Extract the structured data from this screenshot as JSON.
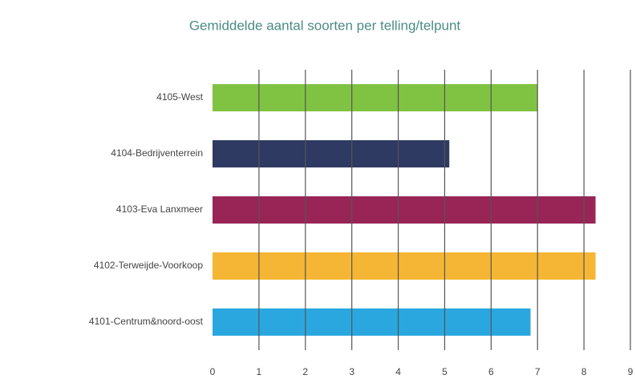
{
  "chart_data": {
    "type": "barh",
    "title": "Gemiddelde aantal soorten per telling/telpunt",
    "categories": [
      "4105-West",
      "4104-Bedrijventerrein",
      "4103-Eva Lanxmeer",
      "4102-Terweijde-Voorkoop",
      "4101-Centrum&noord-oost"
    ],
    "values": [
      7.0,
      5.1,
      8.25,
      8.25,
      6.85
    ],
    "colors": [
      "#80c342",
      "#2f3a62",
      "#982556",
      "#f4b634",
      "#2aa7df"
    ],
    "xlim": [
      0,
      9
    ],
    "xticks": [
      0,
      1,
      2,
      3,
      4,
      5,
      6,
      7,
      8,
      9
    ],
    "grid": true
  }
}
